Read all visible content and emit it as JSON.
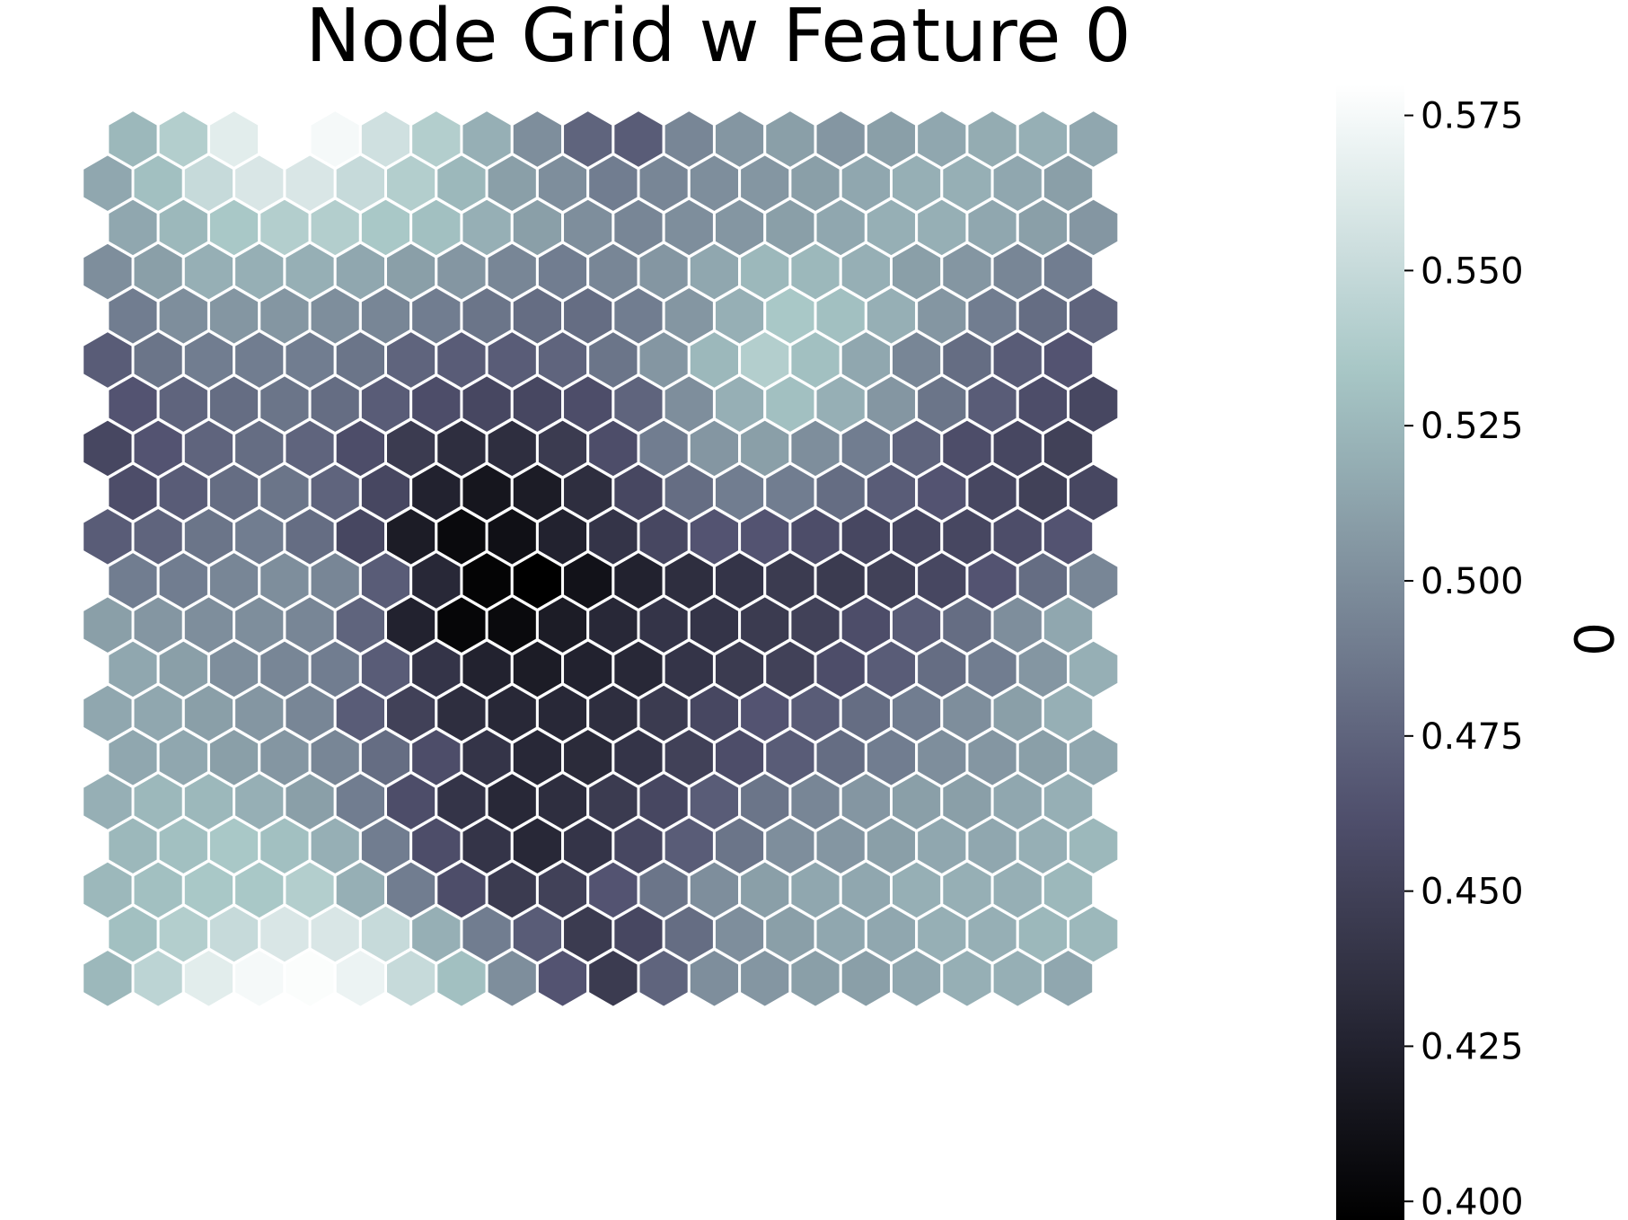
{
  "chart_data": {
    "type": "heatmap",
    "title": "Node Grid w Feature 0",
    "layout": "hexagonal",
    "rows": 20,
    "cols": 20,
    "row_order": "top-to-bottom",
    "colormap": "bone",
    "vmin": 0.397,
    "vmax": 0.58,
    "colorbar": {
      "label": "0",
      "ticks": [
        0.4,
        0.425,
        0.45,
        0.475,
        0.5,
        0.525,
        0.55,
        0.575
      ],
      "tick_labels": [
        "0.400",
        "0.425",
        "0.450",
        "0.475",
        "0.500",
        "0.525",
        "0.550",
        "0.575"
      ],
      "placement": "right"
    },
    "grid": false,
    "values": [
      [
        0.525,
        0.54,
        0.565,
        0.58,
        0.575,
        0.555,
        0.54,
        0.52,
        0.5,
        0.475,
        0.47,
        0.495,
        0.505,
        0.51,
        0.505,
        0.51,
        0.515,
        0.518,
        0.52,
        0.515
      ],
      [
        0.515,
        0.53,
        0.55,
        0.56,
        0.56,
        0.55,
        0.54,
        0.525,
        0.51,
        0.5,
        0.49,
        0.495,
        0.5,
        0.505,
        0.51,
        0.515,
        0.52,
        0.52,
        0.515,
        0.51
      ],
      [
        0.515,
        0.525,
        0.535,
        0.54,
        0.54,
        0.535,
        0.53,
        0.52,
        0.51,
        0.5,
        0.495,
        0.5,
        0.505,
        0.51,
        0.515,
        0.52,
        0.52,
        0.515,
        0.51,
        0.505
      ],
      [
        0.5,
        0.51,
        0.52,
        0.52,
        0.52,
        0.515,
        0.51,
        0.505,
        0.495,
        0.49,
        0.495,
        0.505,
        0.515,
        0.525,
        0.525,
        0.52,
        0.51,
        0.505,
        0.495,
        0.49
      ],
      [
        0.49,
        0.5,
        0.505,
        0.505,
        0.5,
        0.495,
        0.49,
        0.485,
        0.48,
        0.48,
        0.49,
        0.505,
        0.52,
        0.535,
        0.53,
        0.52,
        0.505,
        0.49,
        0.48,
        0.475
      ],
      [
        0.47,
        0.485,
        0.49,
        0.49,
        0.49,
        0.485,
        0.475,
        0.47,
        0.47,
        0.475,
        0.485,
        0.505,
        0.525,
        0.54,
        0.53,
        0.515,
        0.495,
        0.48,
        0.47,
        0.465
      ],
      [
        0.465,
        0.475,
        0.48,
        0.485,
        0.48,
        0.47,
        0.46,
        0.455,
        0.455,
        0.46,
        0.475,
        0.5,
        0.52,
        0.53,
        0.52,
        0.505,
        0.485,
        0.47,
        0.46,
        0.455
      ],
      [
        0.455,
        0.465,
        0.475,
        0.48,
        0.475,
        0.46,
        0.445,
        0.435,
        0.435,
        0.445,
        0.46,
        0.49,
        0.505,
        0.51,
        0.5,
        0.49,
        0.475,
        0.46,
        0.455,
        0.45
      ],
      [
        0.46,
        0.47,
        0.48,
        0.485,
        0.475,
        0.455,
        0.425,
        0.415,
        0.42,
        0.435,
        0.455,
        0.48,
        0.49,
        0.49,
        0.48,
        0.47,
        0.465,
        0.455,
        0.45,
        0.455
      ],
      [
        0.47,
        0.475,
        0.485,
        0.49,
        0.48,
        0.455,
        0.42,
        0.405,
        0.41,
        0.425,
        0.44,
        0.455,
        0.465,
        0.465,
        0.46,
        0.455,
        0.455,
        0.455,
        0.46,
        0.465
      ],
      [
        0.49,
        0.49,
        0.495,
        0.5,
        0.495,
        0.47,
        0.43,
        0.4,
        0.397,
        0.412,
        0.425,
        0.435,
        0.44,
        0.445,
        0.445,
        0.45,
        0.455,
        0.465,
        0.48,
        0.495
      ],
      [
        0.51,
        0.505,
        0.5,
        0.5,
        0.495,
        0.475,
        0.425,
        0.402,
        0.405,
        0.42,
        0.43,
        0.44,
        0.44,
        0.445,
        0.45,
        0.46,
        0.47,
        0.48,
        0.5,
        0.515
      ],
      [
        0.515,
        0.51,
        0.5,
        0.495,
        0.49,
        0.47,
        0.44,
        0.425,
        0.42,
        0.425,
        0.43,
        0.44,
        0.445,
        0.45,
        0.46,
        0.47,
        0.48,
        0.49,
        0.505,
        0.52
      ],
      [
        0.515,
        0.515,
        0.51,
        0.505,
        0.495,
        0.47,
        0.45,
        0.435,
        0.43,
        0.43,
        0.435,
        0.445,
        0.455,
        0.465,
        0.47,
        0.48,
        0.49,
        0.5,
        0.51,
        0.52
      ],
      [
        0.515,
        0.515,
        0.51,
        0.505,
        0.495,
        0.48,
        0.46,
        0.44,
        0.43,
        0.432,
        0.44,
        0.45,
        0.46,
        0.47,
        0.48,
        0.49,
        0.5,
        0.505,
        0.51,
        0.515
      ],
      [
        0.52,
        0.525,
        0.525,
        0.52,
        0.51,
        0.49,
        0.46,
        0.44,
        0.43,
        0.435,
        0.445,
        0.455,
        0.47,
        0.485,
        0.495,
        0.505,
        0.51,
        0.51,
        0.515,
        0.52
      ],
      [
        0.525,
        0.53,
        0.535,
        0.53,
        0.52,
        0.49,
        0.46,
        0.44,
        0.43,
        0.44,
        0.455,
        0.47,
        0.485,
        0.5,
        0.505,
        0.51,
        0.515,
        0.515,
        0.52,
        0.525
      ],
      [
        0.525,
        0.53,
        0.535,
        0.535,
        0.54,
        0.52,
        0.49,
        0.46,
        0.445,
        0.45,
        0.465,
        0.485,
        0.5,
        0.51,
        0.515,
        0.515,
        0.52,
        0.52,
        0.52,
        0.525
      ],
      [
        0.53,
        0.54,
        0.55,
        0.56,
        0.56,
        0.55,
        0.52,
        0.49,
        0.47,
        0.445,
        0.455,
        0.48,
        0.5,
        0.51,
        0.515,
        0.515,
        0.52,
        0.52,
        0.525,
        0.525
      ],
      [
        0.525,
        0.545,
        0.565,
        0.575,
        0.578,
        0.57,
        0.55,
        0.53,
        0.5,
        0.465,
        0.445,
        0.475,
        0.5,
        0.505,
        0.51,
        0.51,
        0.515,
        0.52,
        0.52,
        0.515
      ]
    ]
  }
}
